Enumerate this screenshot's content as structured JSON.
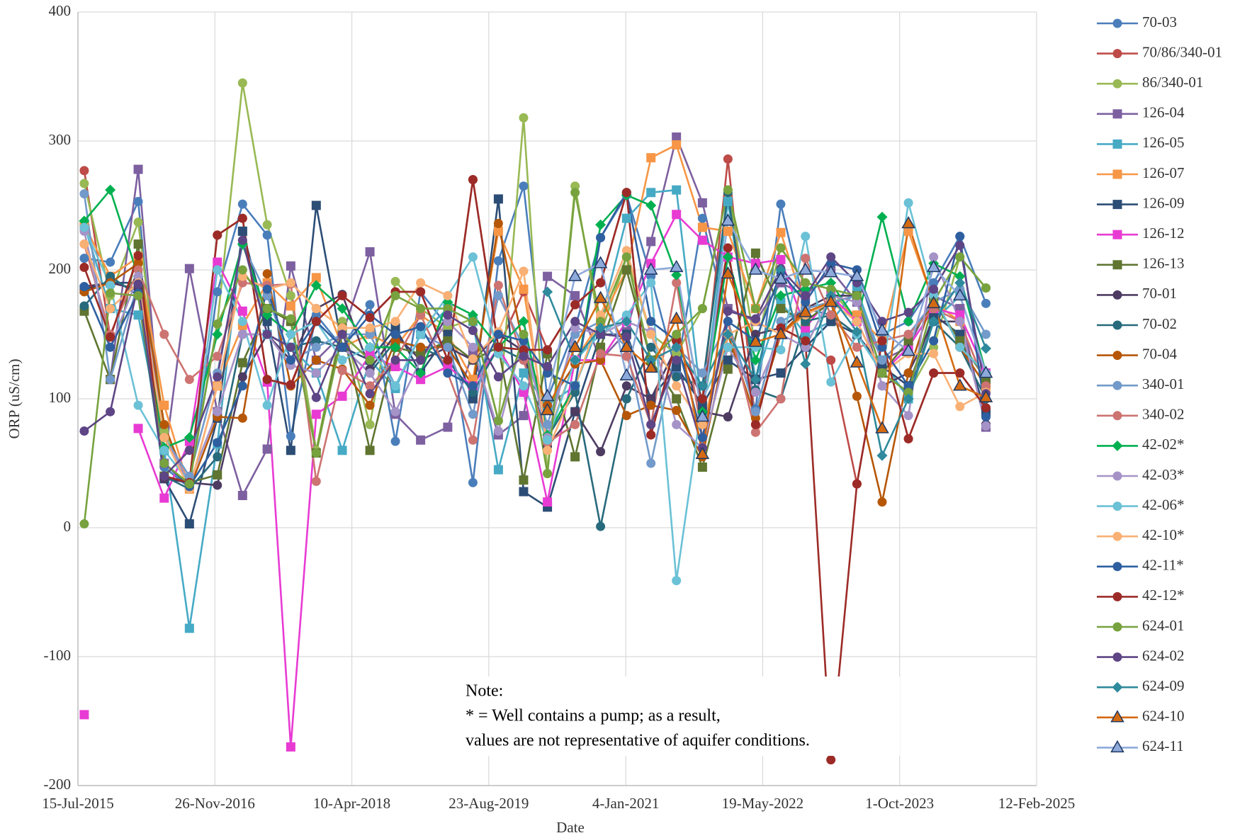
{
  "chart_data": {
    "type": "line",
    "x_label": "Date",
    "y_label": "ORP (uS/cm)",
    "note": [
      "Note:",
      "* = Well contains a pump; as a result,",
      "values are not representative of aquifer conditions."
    ],
    "xlim": [
      "2015-07-15",
      "2025-02-12"
    ],
    "xticks": [
      {
        "value": "2015-07-15",
        "label": "15-Jul-2015"
      },
      {
        "value": "2016-11-26",
        "label": "26-Nov-2016"
      },
      {
        "value": "2018-04-10",
        "label": "10-Apr-2018"
      },
      {
        "value": "2019-08-23",
        "label": "23-Aug-2019"
      },
      {
        "value": "2021-01-04",
        "label": "4-Jan-2021"
      },
      {
        "value": "2022-05-19",
        "label": "19-May-2022"
      },
      {
        "value": "2023-10-01",
        "label": "1-Oct-2023"
      },
      {
        "value": "2025-02-12",
        "label": "12-Feb-2025"
      }
    ],
    "ylim": [
      -200,
      400
    ],
    "yticks": [
      -200,
      -100,
      0,
      100,
      200,
      300,
      400
    ],
    "grid": true,
    "x": [
      "2015-08-07",
      "2015-11-10",
      "2016-02-20",
      "2016-05-25",
      "2016-08-25",
      "2016-12-05",
      "2017-03-07",
      "2017-06-05",
      "2017-08-30",
      "2017-12-01",
      "2018-03-06",
      "2018-06-15",
      "2018-09-16",
      "2018-12-17",
      "2019-03-26",
      "2019-06-26",
      "2019-09-27",
      "2019-12-28",
      "2020-03-24",
      "2020-07-03",
      "2020-10-04",
      "2021-01-07",
      "2021-04-06",
      "2021-07-08",
      "2021-10-11",
      "2022-01-12",
      "2022-04-23",
      "2022-07-24",
      "2022-10-22",
      "2023-01-23",
      "2023-04-28",
      "2023-07-29",
      "2023-11-02",
      "2024-02-02",
      "2024-05-08",
      "2024-08-11"
    ],
    "series": [
      {
        "name": "70-03",
        "color": "#4a7ebb",
        "marker": "circle",
        "values": [
          209,
          206,
          253,
          47,
          31,
          183,
          251,
          227,
          71,
          165,
          140,
          173,
          67,
          183,
          156,
          35,
          207,
          265,
          100,
          155,
          225,
          258,
          195,
          120,
          240,
          160,
          92,
          251,
          170,
          165,
          200,
          150,
          160,
          190,
          226,
          174
        ]
      },
      {
        "name": "70/86/340-01",
        "color": "#be4b48",
        "marker": "circle",
        "values": [
          277,
          148,
          210,
          40,
          35,
          227,
          240,
          115,
          110,
          160,
          180,
          163,
          183,
          183,
          130,
          270,
          140,
          183,
          138,
          173,
          190,
          260,
          72,
          145,
          100,
          286,
          80,
          155,
          145,
          130,
          34,
          145,
          69,
          120,
          120,
          93
        ]
      },
      {
        "name": "86/340-01",
        "color": "#98b954",
        "marker": "circle",
        "values": [
          267,
          180,
          237,
          75,
          35,
          158,
          345,
          235,
          180,
          60,
          160,
          80,
          191,
          170,
          155,
          162,
          83,
          318,
          42,
          265,
          150,
          210,
          150,
          135,
          170,
          262,
          140,
          217,
          190,
          185,
          160,
          120,
          105,
          140,
          210,
          186
        ]
      },
      {
        "name": "126-04",
        "color": "#7d60a0",
        "marker": "square",
        "values": [
          null,
          115,
          278,
          50,
          201,
          90,
          25,
          61,
          203,
          130,
          150,
          214,
          88,
          68,
          78,
          136,
          72,
          87,
          195,
          180,
          130,
          152,
          222,
          303,
          252,
          170,
          160,
          190,
          180,
          200,
          175,
          130,
          140,
          180,
          170,
          78
        ]
      },
      {
        "name": "126-05",
        "color": "#46aac5",
        "marker": "square",
        "values": [
          235,
          170,
          165,
          60,
          -78,
          65,
          230,
          150,
          140,
          120,
          60,
          130,
          108,
          150,
          170,
          160,
          45,
          120,
          95,
          110,
          160,
          240,
          260,
          262,
          90,
          253,
          115,
          175,
          150,
          160,
          185,
          130,
          100,
          160,
          180,
          120
        ]
      },
      {
        "name": "126-07",
        "color": "#f79646",
        "marker": "square",
        "values": [
          235,
          195,
          210,
          95,
          30,
          110,
          157,
          190,
          172,
          194,
          140,
          150,
          140,
          165,
          150,
          115,
          230,
          185,
          70,
          130,
          160,
          200,
          287,
          297,
          233,
          230,
          170,
          229,
          170,
          175,
          165,
          145,
          230,
          175,
          160,
          110
        ]
      },
      {
        "name": "126-09",
        "color": "#2c4d75",
        "marker": "square",
        "values": [
          185,
          190,
          190,
          38,
          3,
          85,
          230,
          160,
          60,
          250,
          140,
          130,
          155,
          120,
          150,
          100,
          255,
          28,
          16,
          90,
          150,
          150,
          100,
          125,
          95,
          130,
          115,
          120,
          140,
          160,
          150,
          125,
          110,
          165,
          150,
          90
        ]
      },
      {
        "name": "126-12",
        "color": "#e83bd3",
        "marker": "square",
        "values": [
          -145,
          null,
          77,
          23,
          67,
          206,
          168,
          113,
          -170,
          88,
          102,
          134,
          125,
          115,
          125,
          110,
          140,
          105,
          20,
          130,
          130,
          160,
          205,
          243,
          223,
          210,
          205,
          208,
          155,
          180,
          160,
          120,
          140,
          170,
          165,
          120
        ]
      },
      {
        "name": "126-13",
        "color": "#5f7530",
        "marker": "square",
        "values": [
          168,
          115,
          220,
          40,
          35,
          41,
          128,
          170,
          160,
          58,
          155,
          60,
          140,
          135,
          145,
          130,
          140,
          37,
          135,
          55,
          140,
          200,
          130,
          100,
          47,
          123,
          213,
          170,
          160,
          175,
          180,
          120,
          145,
          175,
          145,
          115
        ]
      },
      {
        "name": "70-01",
        "color": "#4d3b62",
        "marker": "circle",
        "values": [
          187,
          190,
          185,
          38,
          35,
          33,
          117,
          150,
          130,
          170,
          181,
          123,
          150,
          130,
          140,
          130,
          150,
          137,
          63,
          90,
          59,
          110,
          100,
          140,
          90,
          86,
          150,
          155,
          170,
          180,
          180,
          110,
          120,
          160,
          160,
          80
        ]
      },
      {
        "name": "70-02",
        "color": "#276a7c",
        "marker": "circle",
        "values": [
          172,
          195,
          180,
          40,
          30,
          55,
          150,
          150,
          140,
          145,
          140,
          120,
          145,
          140,
          130,
          105,
          140,
          130,
          70,
          105,
          1,
          100,
          140,
          117,
          110,
          260,
          107,
          100,
          160,
          165,
          150,
          120,
          105,
          160,
          140,
          100
        ]
      },
      {
        "name": "70-04",
        "color": "#b65708",
        "marker": "circle",
        "values": [
          183,
          190,
          205,
          80,
          30,
          86,
          85,
          197,
          110,
          130,
          123,
          95,
          145,
          140,
          140,
          110,
          236,
          140,
          95,
          127,
          130,
          87,
          95,
          91,
          55,
          150,
          85,
          150,
          170,
          175,
          102,
          20,
          120,
          180,
          140,
          110
        ]
      },
      {
        "name": "340-01",
        "color": "#729aca",
        "marker": "circle",
        "values": [
          259,
          115,
          190,
          70,
          40,
          120,
          220,
          180,
          130,
          140,
          150,
          150,
          110,
          150,
          140,
          88,
          180,
          140,
          80,
          150,
          160,
          140,
          50,
          140,
          120,
          160,
          90,
          160,
          170,
          175,
          180,
          130,
          150,
          175,
          185,
          150
        ]
      },
      {
        "name": "340-02",
        "color": "#cd7371",
        "marker": "circle",
        "values": [
          220,
          150,
          200,
          150,
          115,
          133,
          190,
          188,
          189,
          36,
          122,
          110,
          130,
          165,
          120,
          68,
          188,
          130,
          66,
          80,
          135,
          133,
          80,
          190,
          70,
          160,
          74,
          100,
          209,
          165,
          140,
          145,
          150,
          170,
          160,
          110
        ]
      },
      {
        "name": "42-02*",
        "color": "#00b050",
        "marker": "diamond",
        "values": [
          238,
          262,
          195,
          62,
          70,
          150,
          220,
          165,
          150,
          188,
          170,
          140,
          140,
          120,
          175,
          165,
          140,
          160,
          72,
          110,
          235,
          258,
          250,
          196,
          90,
          210,
          130,
          180,
          185,
          190,
          160,
          241,
          160,
          205,
          195,
          120
        ]
      },
      {
        "name": "42-03*",
        "color": "#a593c8",
        "marker": "circle",
        "values": [
          230,
          140,
          195,
          70,
          35,
          90,
          150,
          150,
          126,
          120,
          140,
          120,
          90,
          130,
          160,
          140,
          75,
          150,
          70,
          155,
          150,
          160,
          152,
          80,
          62,
          140,
          105,
          150,
          140,
          180,
          175,
          110,
          87,
          210,
          160,
          79
        ]
      },
      {
        "name": "42-06*",
        "color": "#6bc1d6",
        "marker": "circle",
        "values": [
          233,
          188,
          95,
          60,
          35,
          200,
          160,
          95,
          150,
          160,
          130,
          140,
          110,
          150,
          180,
          210,
          135,
          110,
          68,
          130,
          150,
          165,
          190,
          -41,
          100,
          140,
          140,
          138,
          226,
          113,
          150,
          120,
          252,
          180,
          140,
          120
        ]
      },
      {
        "name": "42-10*",
        "color": "#f9b074",
        "marker": "circle",
        "values": [
          220,
          170,
          190,
          70,
          30,
          110,
          195,
          185,
          190,
          170,
          155,
          155,
          160,
          190,
          180,
          131,
          152,
          199,
          60,
          110,
          165,
          215,
          150,
          110,
          80,
          150,
          160,
          150,
          165,
          175,
          160,
          120,
          135,
          135,
          94,
          105
        ]
      },
      {
        "name": "42-11*",
        "color": "#2e5fa0",
        "marker": "circle",
        "values": [
          187,
          140,
          182,
          50,
          32,
          66,
          110,
          185,
          130,
          160,
          140,
          165,
          150,
          156,
          120,
          110,
          150,
          145,
          120,
          110,
          225,
          260,
          160,
          145,
          70,
          160,
          145,
          198,
          175,
          205,
          200,
          140,
          110,
          145,
          226,
          86
        ]
      },
      {
        "name": "42-12*",
        "color": "#9c2b27",
        "marker": "circle",
        "values": [
          202,
          148,
          211,
          40,
          35,
          227,
          240,
          115,
          111,
          160,
          180,
          163,
          183,
          183,
          130,
          270,
          140,
          138,
          138,
          173,
          190,
          260,
          72,
          145,
          100,
          217,
          80,
          155,
          145,
          -180,
          34,
          145,
          69,
          120,
          120,
          93
        ]
      },
      {
        "name": "624-01",
        "color": "#77a23e",
        "marker": "circle",
        "values": [
          3,
          182,
          180,
          50,
          34,
          158,
          200,
          170,
          162,
          58,
          150,
          130,
          180,
          170,
          170,
          160,
          83,
          150,
          42,
          260,
          160,
          210,
          130,
          150,
          170,
          262,
          170,
          217,
          190,
          185,
          180,
          120,
          105,
          175,
          210,
          186
        ]
      },
      {
        "name": "624-02",
        "color": "#5e4585",
        "marker": "circle",
        "values": [
          75,
          90,
          189,
          40,
          60,
          117,
          223,
          150,
          140,
          101,
          150,
          104,
          130,
          130,
          165,
          153,
          117,
          133,
          125,
          160,
          150,
          148,
          80,
          130,
          62,
          168,
          162,
          201,
          180,
          210,
          190,
          160,
          167,
          185,
          219,
          104
        ]
      },
      {
        "name": "624-09",
        "color": "#2e8a9c",
        "marker": "diamond",
        "values": [
          null,
          null,
          null,
          null,
          null,
          null,
          null,
          null,
          null,
          null,
          null,
          null,
          null,
          null,
          null,
          null,
          null,
          null,
          183,
          130,
          155,
          160,
          130,
          140,
          110,
          150,
          115,
          200,
          127,
          180,
          152,
          56,
          100,
          160,
          190,
          139
        ]
      },
      {
        "name": "624-10",
        "color": "#d46a12",
        "marker": "triangle",
        "values": [
          null,
          null,
          null,
          null,
          null,
          null,
          null,
          null,
          null,
          null,
          null,
          null,
          null,
          null,
          null,
          null,
          null,
          null,
          91,
          140,
          178,
          140,
          124,
          162,
          57,
          197,
          144,
          150,
          167,
          175,
          128,
          77,
          236,
          174,
          110,
          101
        ]
      },
      {
        "name": "624-11",
        "color": "#8eaadb",
        "marker": "triangle",
        "values": [
          null,
          null,
          null,
          null,
          null,
          null,
          null,
          null,
          null,
          null,
          null,
          null,
          null,
          null,
          null,
          null,
          null,
          null,
          102,
          195,
          205,
          118,
          200,
          202,
          86,
          238,
          200,
          193,
          200,
          198,
          195,
          153,
          137,
          202,
          180,
          120
        ]
      }
    ]
  }
}
